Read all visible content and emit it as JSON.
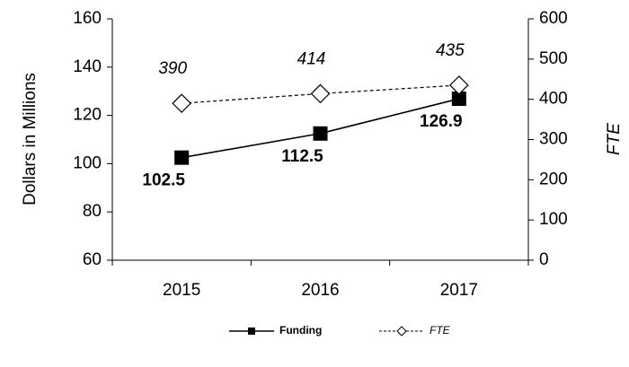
{
  "chart_data": {
    "type": "line",
    "y_label": "Dollars in Millions",
    "y2_label": "FTE",
    "categories": [
      "2015",
      "2016",
      "2017"
    ],
    "series": [
      {
        "name": "Funding",
        "color": "#000000",
        "marker": "square",
        "dash": false,
        "values": [
          102.5,
          112.5,
          126.9
        ]
      },
      {
        "name": "FTE",
        "color": "#000000",
        "marker": "diamond",
        "dash": true,
        "axis": "y2",
        "values": [
          390,
          414,
          435
        ]
      }
    ],
    "ylim": [
      60,
      160
    ],
    "yticks": [
      60,
      80,
      100,
      120,
      140,
      160
    ],
    "y2lim": [
      0,
      600
    ],
    "y2ticks": [
      0,
      100,
      200,
      300,
      400,
      500,
      600
    ],
    "legend": "bottom"
  }
}
